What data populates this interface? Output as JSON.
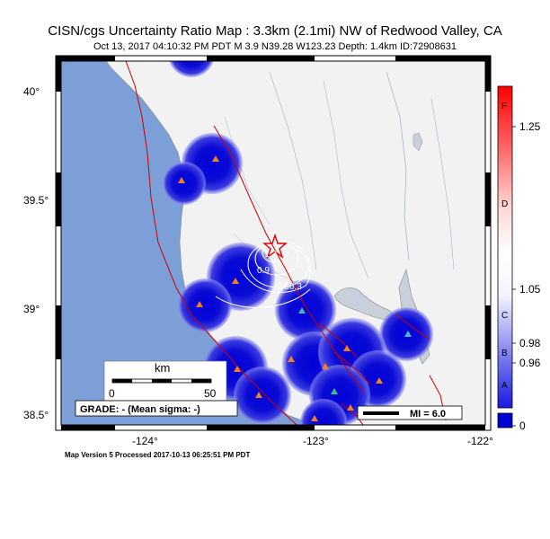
{
  "title": "CISN/cgs Uncertainty Ratio Map : 3.3km (2.1mi) NW of Redwood Valley, CA",
  "subtitle": "Oct 13, 2017 04:10:32 PM PDT   M 3.9   N39.28 W123.23   Depth: 1.4km   ID:72908631",
  "footer": "Map Version 5 Processed 2017-10-13 06:25:51 PM PDT",
  "lat_labels": [
    "40°",
    "39.5°",
    "39°",
    "38.5°"
  ],
  "lon_labels": [
    "-124°",
    "-123°",
    "-122°"
  ],
  "scale_bar": {
    "unit": "km",
    "start": "0",
    "end": "50"
  },
  "grade": "GRADE: - (Mean sigma: -)",
  "mi_legend": "MI = 6.0",
  "contour_labels": [
    "1.2",
    "0.9",
    "0.6",
    "0.3"
  ],
  "colorbar": {
    "values": [
      "1.25",
      "1.05",
      "0.98",
      "0.96",
      "0"
    ],
    "letters": [
      "F",
      "D",
      "C",
      "B",
      "A"
    ]
  },
  "colors": {
    "ocean": "#7b9fd6",
    "land": "#f2f2f2",
    "blob": "#0b0bd6",
    "fault": "#cc0000",
    "epicenter": "#e00000"
  }
}
